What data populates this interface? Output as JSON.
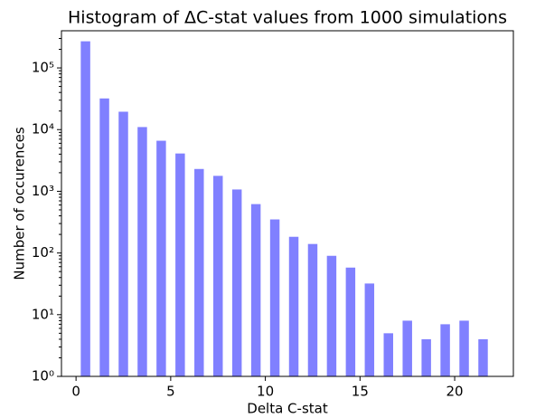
{
  "chart_data": {
    "type": "histogram",
    "title": "Histogram of ΔC-stat values from 1000 simulations",
    "xlabel": "Delta C-stat",
    "ylabel": "Number of occurences",
    "bins": [
      0,
      1,
      2,
      3,
      4,
      5,
      6,
      7,
      8,
      9,
      10,
      11,
      12,
      13,
      14,
      15,
      16,
      17,
      18,
      19,
      20,
      21,
      22
    ],
    "values": [
      270000,
      32000,
      19500,
      11000,
      6600,
      4100,
      2300,
      1780,
      1070,
      620,
      350,
      183,
      140,
      90,
      58,
      32,
      5,
      8,
      4,
      7,
      8,
      4
    ],
    "color": "#8080ff",
    "rwidth": 0.5,
    "xlim": [
      -0.77,
      23.1
    ],
    "xticks": [
      0,
      5,
      10,
      15,
      20
    ],
    "ylim": [
      1,
      400000
    ],
    "log_y": true,
    "yticks": [
      {
        "value": 1,
        "label": "10⁰"
      },
      {
        "value": 10,
        "label": "10¹"
      },
      {
        "value": 100,
        "label": "10²"
      },
      {
        "value": 1000,
        "label": "10³"
      },
      {
        "value": 10000,
        "label": "10⁴"
      },
      {
        "value": 100000,
        "label": "10⁵"
      }
    ]
  }
}
